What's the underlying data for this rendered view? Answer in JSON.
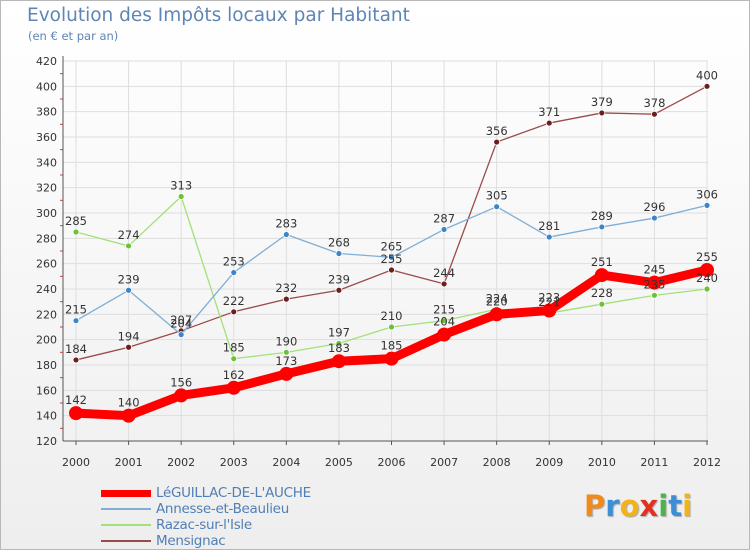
{
  "header": {
    "title": "Evolution des Impôts locaux par Habitant",
    "subtitle": "(en € et par an)"
  },
  "logo": {
    "text": "Proxiti",
    "letters": [
      "P",
      "r",
      "o",
      "x",
      "i",
      "t",
      "i"
    ],
    "colors": [
      "#f08a1a",
      "#3c8fd6",
      "#f3b316",
      "#e2321f",
      "#4cb34a",
      "#3c8fd6",
      "#f3b316"
    ]
  },
  "chart_data": {
    "type": "line",
    "title": "Evolution des Impôts locaux par Habitant",
    "subtitle": "(en € et par an)",
    "xlabel": "",
    "ylabel": "",
    "ylim": [
      120,
      420
    ],
    "yticks": [
      120,
      140,
      160,
      180,
      200,
      220,
      240,
      260,
      280,
      300,
      320,
      340,
      360,
      380,
      400,
      420
    ],
    "x": [
      2000,
      2001,
      2002,
      2003,
      2004,
      2005,
      2006,
      2007,
      2008,
      2009,
      2010,
      2011,
      2012
    ],
    "grid": true,
    "legend_position": "bottom-left",
    "series": [
      {
        "name": "LéGUILLAC-DE-L'AUCHE",
        "color": "#ff0000",
        "marker_color": "#ff0000",
        "emphasis": true,
        "values": [
          142,
          140,
          156,
          162,
          173,
          183,
          185,
          204,
          220,
          223,
          251,
          245,
          255
        ]
      },
      {
        "name": "Annesse-et-Beaulieu",
        "color": "#7faed6",
        "marker_color": "#3d85c6",
        "emphasis": false,
        "values": [
          215,
          239,
          204,
          253,
          283,
          268,
          265,
          287,
          305,
          281,
          289,
          296,
          306
        ]
      },
      {
        "name": "Razac-sur-l'Isle",
        "color": "#a3e077",
        "marker_color": "#6cc13a",
        "emphasis": false,
        "values": [
          285,
          274,
          313,
          185,
          190,
          197,
          210,
          215,
          224,
          221,
          228,
          235,
          240
        ]
      },
      {
        "name": "Mensignac",
        "color": "#9a4a4a",
        "marker_color": "#6b1f1f",
        "emphasis": false,
        "values": [
          184,
          194,
          207,
          222,
          232,
          239,
          255,
          244,
          356,
          371,
          379,
          378,
          400
        ]
      }
    ]
  }
}
